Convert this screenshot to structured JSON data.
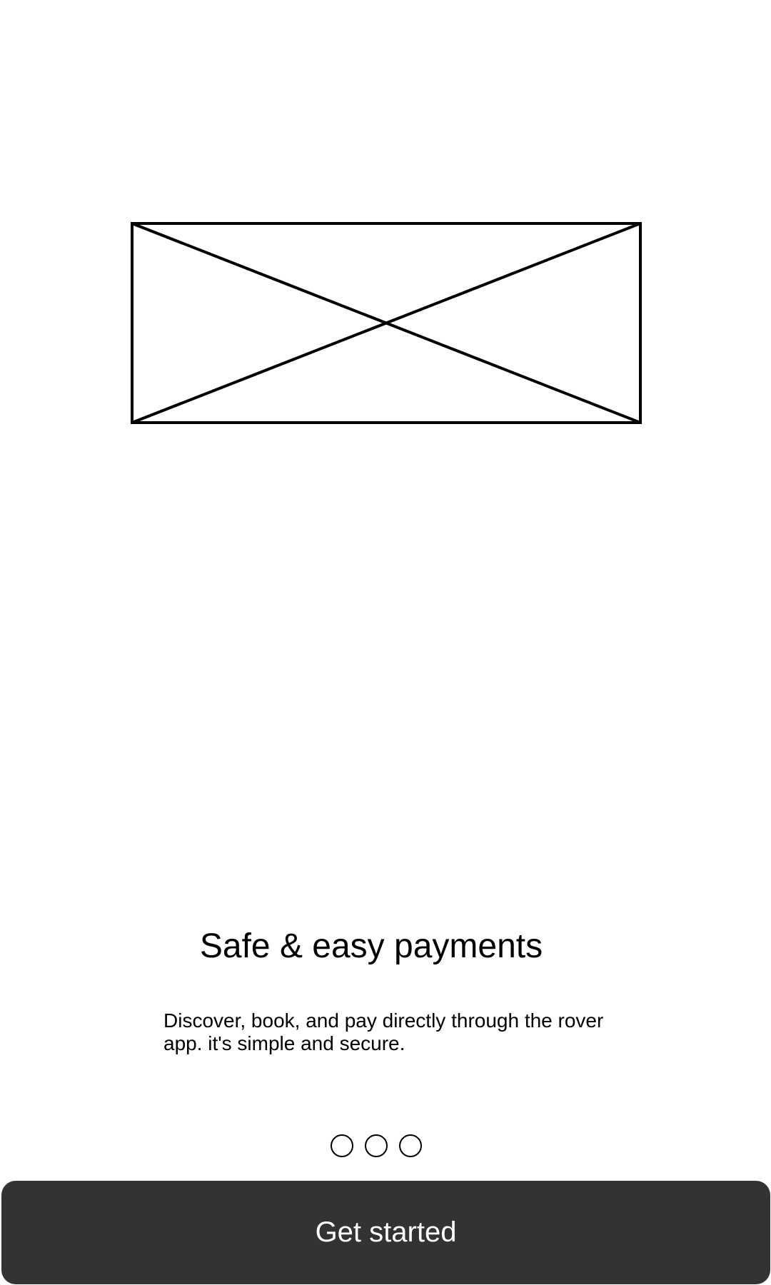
{
  "onboarding": {
    "hero_image": "image-placeholder-icon",
    "title": "Safe & easy payments",
    "description": "Discover, book, and pay directly through the rover app. it's simple and secure.",
    "pager": {
      "count": 3
    },
    "cta_label": "Get started"
  },
  "colors": {
    "button_bg": "#333333",
    "button_text": "#ffffff",
    "stroke": "#000000"
  }
}
